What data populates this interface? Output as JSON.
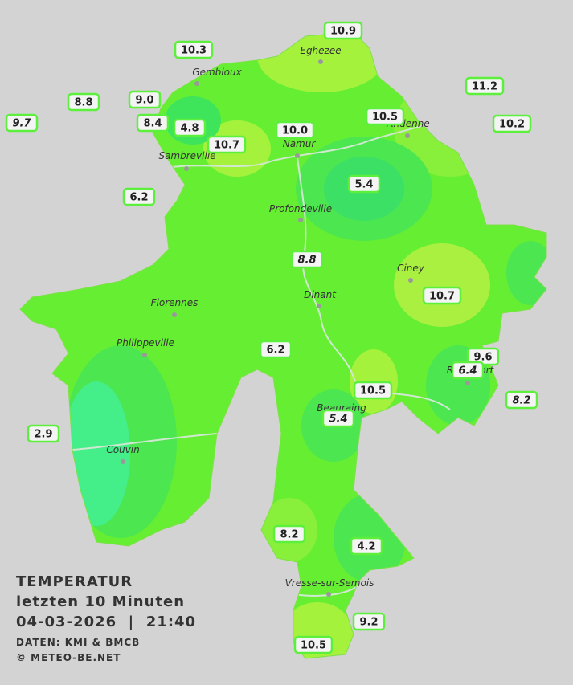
{
  "title": {
    "line1": "TEMPERATUR",
    "line2": "letzten 10 Minuten",
    "line3": "04-03-2026  |  21:40",
    "source": "DATEN: KMI & BMCB",
    "copyright": "© METEO-BE.NET"
  },
  "towns": [
    {
      "name": "Eghezee"
    },
    {
      "name": "Gembloux"
    },
    {
      "name": "Andenne"
    },
    {
      "name": "Namur"
    },
    {
      "name": "Sambreville"
    },
    {
      "name": "Profondeville"
    },
    {
      "name": "Ciney"
    },
    {
      "name": "Florennes"
    },
    {
      "name": "Dinant"
    },
    {
      "name": "Philippeville"
    },
    {
      "name": "Beauraing"
    },
    {
      "name": "Rochefort"
    },
    {
      "name": "Couvin"
    },
    {
      "name": "Vresse-sur-Semois"
    }
  ],
  "stations": [
    {
      "value": "10.9"
    },
    {
      "value": "10.3"
    },
    {
      "value": "11.2"
    },
    {
      "value": "8.8"
    },
    {
      "value": "9.0"
    },
    {
      "value": "9.7"
    },
    {
      "value": "8.4"
    },
    {
      "value": "4.8"
    },
    {
      "value": "10.5"
    },
    {
      "value": "10.2"
    },
    {
      "value": "10.0"
    },
    {
      "value": "10.7"
    },
    {
      "value": "5.4"
    },
    {
      "value": "6.2"
    },
    {
      "value": "8.8"
    },
    {
      "value": "10.7"
    },
    {
      "value": "6.2"
    },
    {
      "value": "9.6"
    },
    {
      "value": "6.4"
    },
    {
      "value": "10.5"
    },
    {
      "value": "8.2"
    },
    {
      "value": "5.4"
    },
    {
      "value": "2.9"
    },
    {
      "value": "8.2"
    },
    {
      "value": "4.2"
    },
    {
      "value": "9.2"
    },
    {
      "value": "10.5"
    }
  ]
}
